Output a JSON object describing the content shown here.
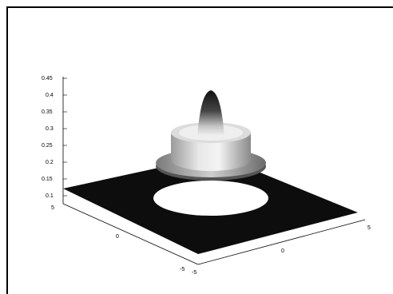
{
  "chart_data": {
    "type": "surface",
    "title": "",
    "xlabel": "",
    "ylabel": "",
    "zlabel": "",
    "grid": false,
    "xlim": [
      -5,
      5
    ],
    "ylim": [
      -5,
      5
    ],
    "zlim": [
      0.1,
      0.45
    ],
    "x_ticks": [
      "-5",
      "0",
      "5"
    ],
    "y_ticks": [
      "-5",
      "0",
      "5"
    ],
    "z_ticks": [
      "0.1",
      "0.15",
      "0.2",
      "0.25",
      "0.3",
      "0.35",
      "0.4",
      "0.45"
    ],
    "surface": {
      "description_values": [
        {
          "region": "outer plane",
          "z": 0.12
        },
        {
          "region": "hole",
          "r_inner": 1.6,
          "r_outer": 2.7
        },
        {
          "region": "annulus ring",
          "r_inner": 1.4,
          "r_outer": 1.6,
          "z": 0.2
        },
        {
          "region": "plateau",
          "r": 1.2,
          "z": 0.28
        },
        {
          "region": "central peak",
          "r": 0.4,
          "z": 0.43
        }
      ]
    },
    "colors": {
      "plane": "#0d0d0d",
      "hole": "#ffffff",
      "surface_light": "#f2f2f2",
      "surface_dark": "#202020"
    }
  }
}
